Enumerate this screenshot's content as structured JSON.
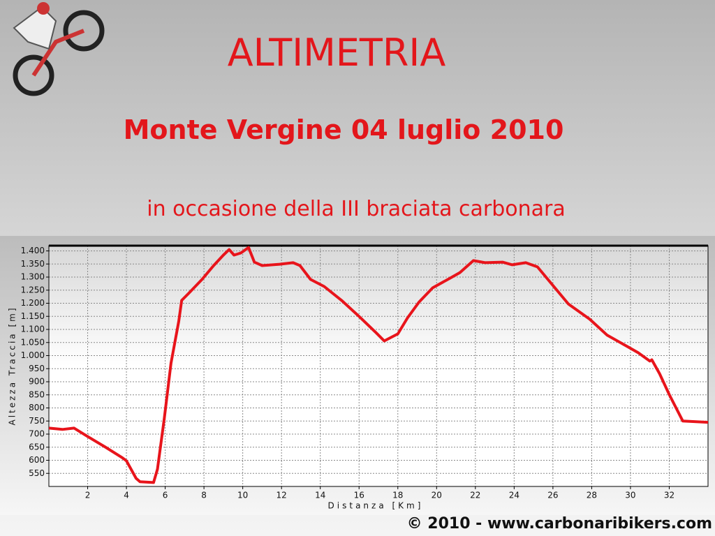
{
  "chart_data": {
    "type": "line",
    "title": "ALTIMETRIA",
    "subtitle": "Monte Vergine 04 luglio 2010",
    "annotation": "in occasione della III braciata carbonara",
    "x_label": "Distanza [Km]",
    "y_label": "Altezza Traccia [m]",
    "color": "#e8141b",
    "grid": true,
    "x": [
      0,
      0.7,
      1.3,
      2,
      2.9,
      3.8,
      4,
      4.5,
      4.7,
      5.4,
      5.6,
      5.95,
      6.3,
      6.7,
      6.85,
      7.2,
      7.9,
      8.5,
      9,
      9.3,
      9.55,
      9.9,
      10.3,
      10.6,
      11,
      11.9,
      12.6,
      12.95,
      13.5,
      14.2,
      15.1,
      16,
      16.9,
      17.3,
      18,
      18.5,
      19.1,
      19.8,
      20.7,
      21.2,
      21.9,
      22.5,
      23.4,
      23.9,
      24.6,
      25.2,
      26.1,
      26.8,
      27.9,
      28.8,
      29.9,
      30.4,
      31,
      31.1,
      31.5,
      32,
      32.7,
      34
    ],
    "values": [
      723,
      718,
      723,
      691,
      651,
      609,
      598,
      531,
      518,
      515,
      566,
      758,
      971,
      1131,
      1211,
      1237,
      1291,
      1344,
      1384,
      1405,
      1384,
      1392,
      1413,
      1357,
      1344,
      1349,
      1355,
      1344,
      1291,
      1264,
      1211,
      1150,
      1086,
      1056,
      1083,
      1144,
      1205,
      1259,
      1296,
      1317,
      1363,
      1355,
      1357,
      1347,
      1355,
      1339,
      1259,
      1197,
      1139,
      1078,
      1032,
      1011,
      979,
      984,
      931,
      851,
      750,
      745
    ],
    "xlim": [
      0,
      34
    ],
    "ylim": [
      500,
      1420
    ],
    "xticks": [
      2,
      4,
      6,
      8,
      10,
      12,
      14,
      16,
      18,
      20,
      22,
      24,
      26,
      28,
      30,
      32
    ],
    "yticks": [
      550,
      600,
      650,
      700,
      750,
      800,
      850,
      900,
      950,
      {
        "value": 1000,
        "label": "1.000"
      },
      {
        "value": 1050,
        "label": "1.050"
      },
      {
        "value": 1100,
        "label": "1.100"
      },
      {
        "value": 1150,
        "label": "1.150"
      },
      {
        "value": 1200,
        "label": "1.200"
      },
      {
        "value": 1250,
        "label": "1.250"
      },
      {
        "value": 1300,
        "label": "1.300"
      },
      {
        "value": 1350,
        "label": "1.350"
      },
      {
        "value": 1400,
        "label": "1.400"
      }
    ]
  },
  "footer": "© 2010 - www.carbonaribikers.com"
}
